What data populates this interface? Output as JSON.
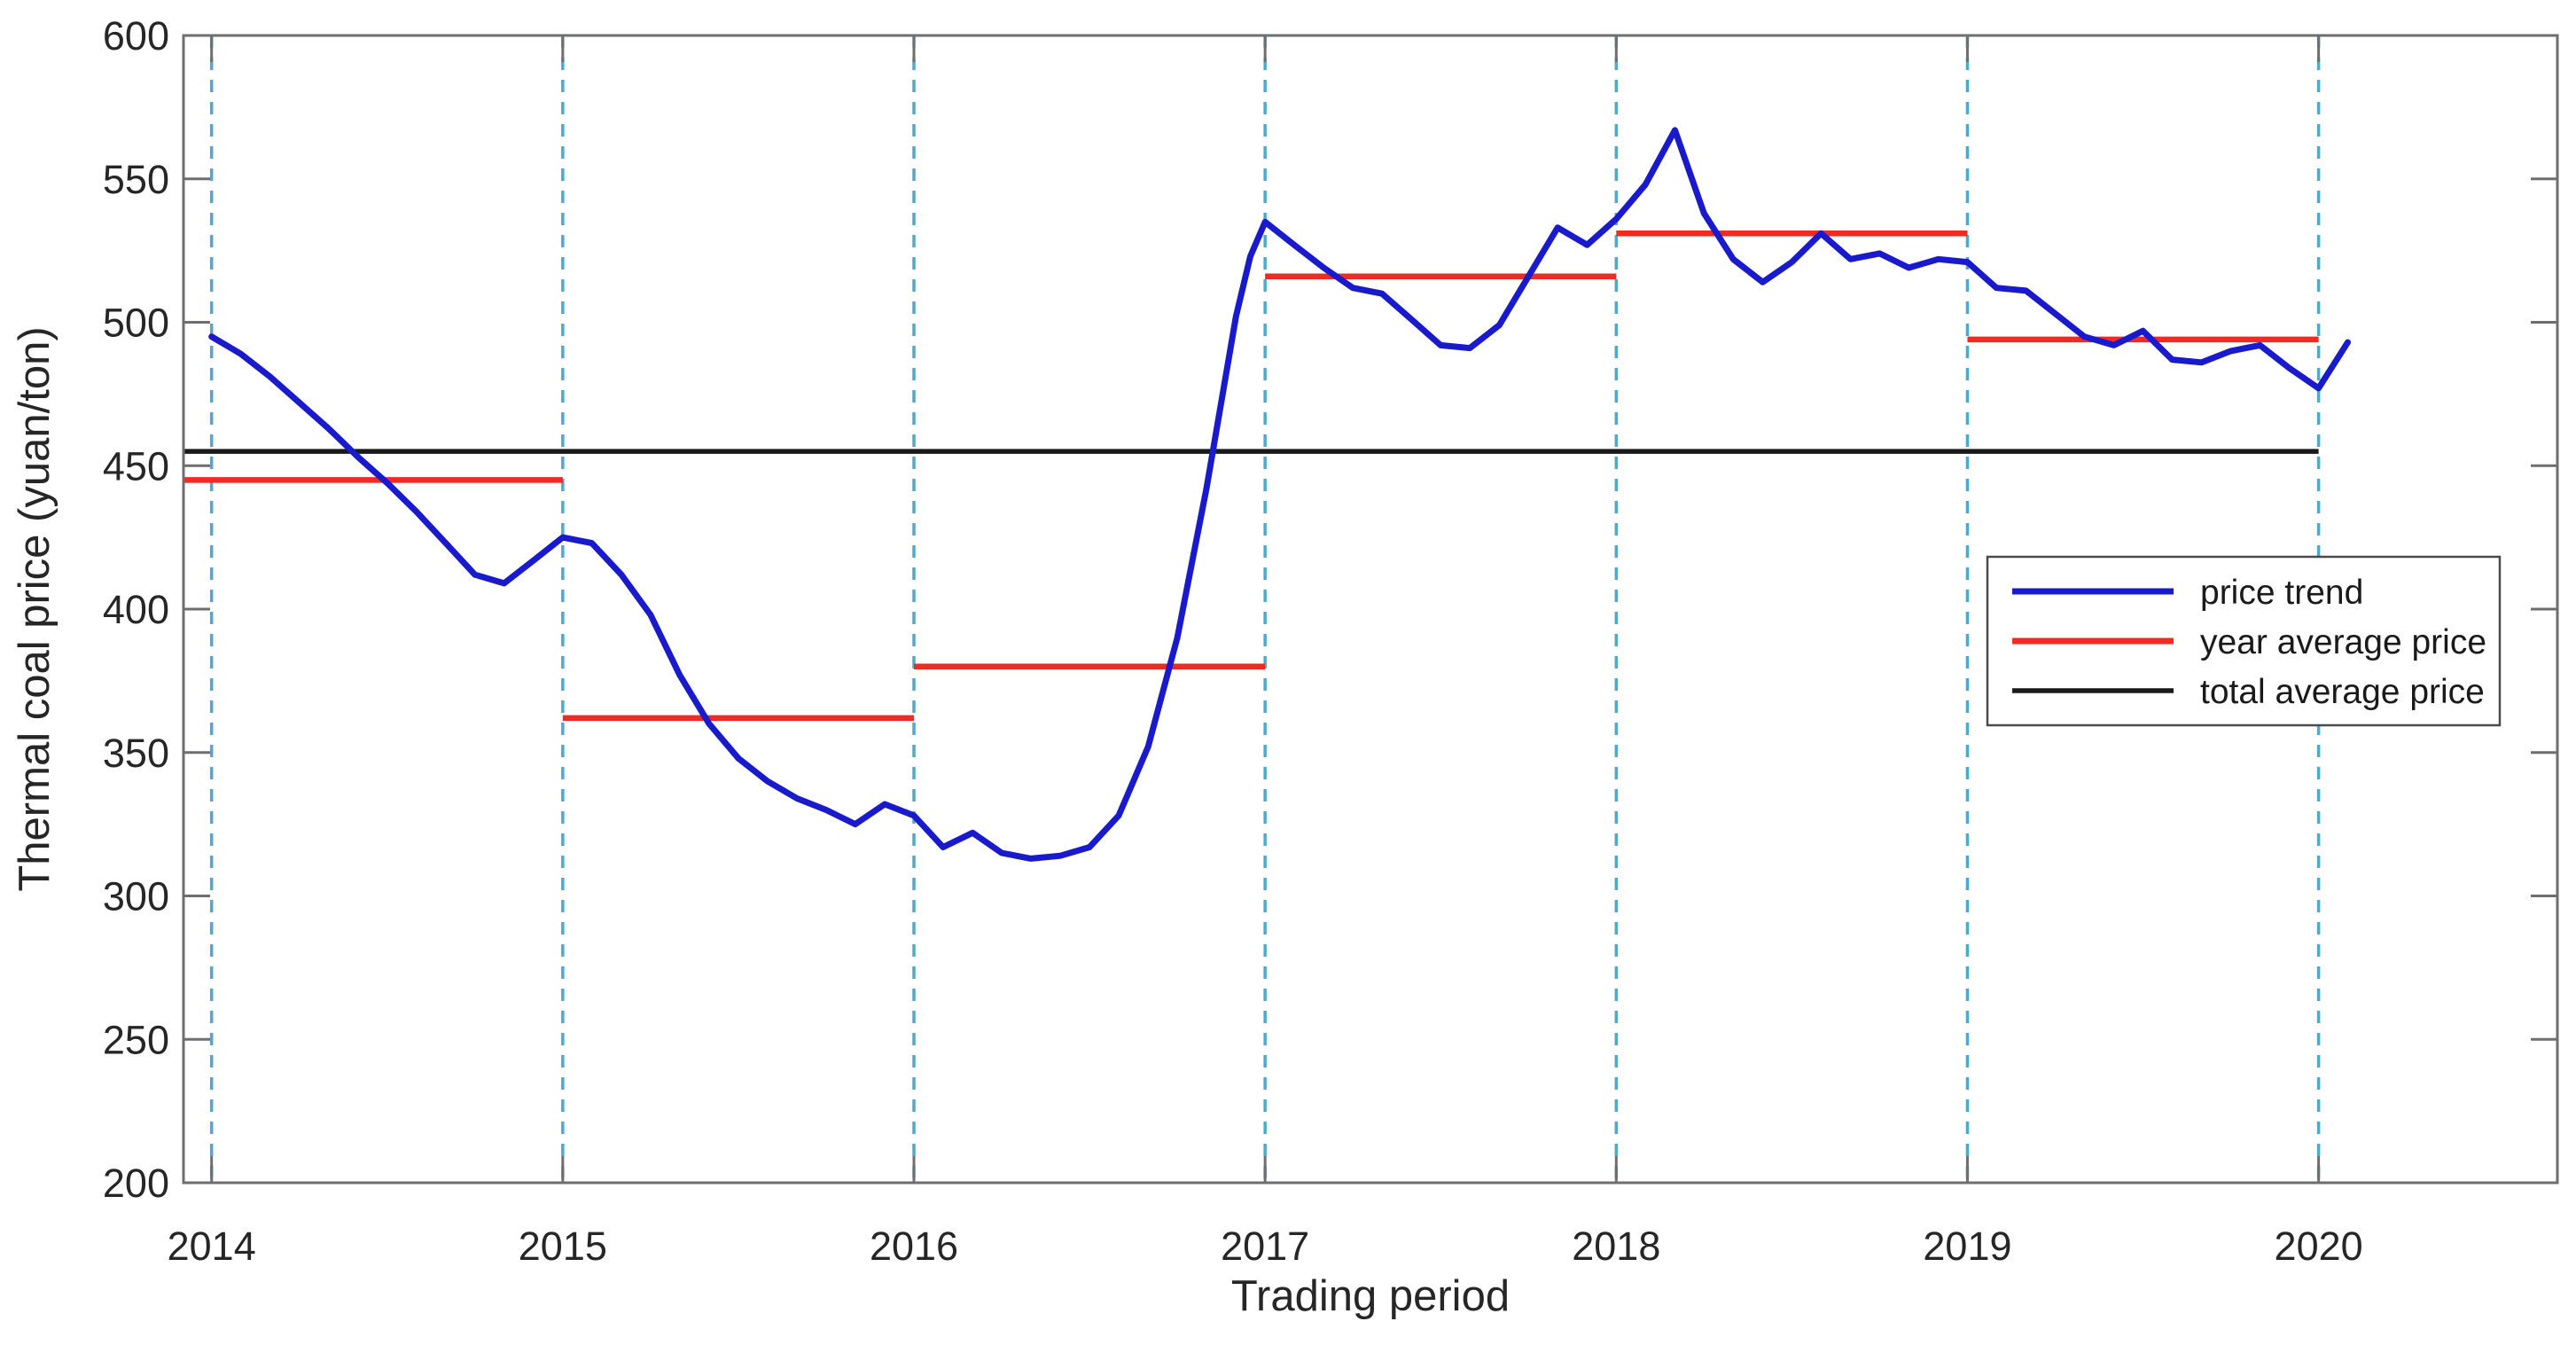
{
  "page": {
    "background": "#ffffff"
  },
  "chart_data": {
    "type": "line",
    "title": "",
    "xlabel": "Trading period",
    "ylabel": "Thermal coal price (yuan/ton)",
    "xlim": [
      2013.92,
      2020.68
    ],
    "ylim": [
      200,
      600
    ],
    "xticks": [
      2014,
      2015,
      2016,
      2017,
      2018,
      2019,
      2020
    ],
    "yticks": [
      200,
      250,
      300,
      350,
      400,
      450,
      500,
      550,
      600
    ],
    "grid": "vertical dashed lines at each year tick",
    "gridline_color": "#4fa9ce",
    "axis_color": "#6e6e6e",
    "legend_position": "middle-right",
    "series": [
      {
        "name": "price trend",
        "color": "#1a1acd",
        "points": [
          [
            2014.0,
            495
          ],
          [
            2014.083,
            489
          ],
          [
            2014.167,
            481
          ],
          [
            2014.25,
            472
          ],
          [
            2014.333,
            463
          ],
          [
            2014.417,
            453
          ],
          [
            2014.5,
            444
          ],
          [
            2014.583,
            434
          ],
          [
            2014.667,
            423
          ],
          [
            2014.75,
            412
          ],
          [
            2014.833,
            409
          ],
          [
            2014.917,
            417
          ],
          [
            2015.0,
            425
          ],
          [
            2015.083,
            423
          ],
          [
            2015.167,
            412
          ],
          [
            2015.25,
            398
          ],
          [
            2015.333,
            377
          ],
          [
            2015.417,
            360
          ],
          [
            2015.5,
            348
          ],
          [
            2015.583,
            340
          ],
          [
            2015.667,
            334
          ],
          [
            2015.75,
            330
          ],
          [
            2015.833,
            325
          ],
          [
            2015.917,
            332
          ],
          [
            2016.0,
            328
          ],
          [
            2016.083,
            317
          ],
          [
            2016.167,
            322
          ],
          [
            2016.25,
            315
          ],
          [
            2016.333,
            313
          ],
          [
            2016.417,
            314
          ],
          [
            2016.5,
            317
          ],
          [
            2016.583,
            328
          ],
          [
            2016.667,
            352
          ],
          [
            2016.75,
            390
          ],
          [
            2016.833,
            442
          ],
          [
            2016.917,
            502
          ],
          [
            2016.958,
            523
          ],
          [
            2017.0,
            535
          ],
          [
            2017.083,
            527
          ],
          [
            2017.167,
            519
          ],
          [
            2017.25,
            512
          ],
          [
            2017.333,
            510
          ],
          [
            2017.417,
            501
          ],
          [
            2017.5,
            492
          ],
          [
            2017.583,
            491
          ],
          [
            2017.667,
            499
          ],
          [
            2017.75,
            516
          ],
          [
            2017.833,
            533
          ],
          [
            2017.917,
            527
          ],
          [
            2018.0,
            536
          ],
          [
            2018.083,
            548
          ],
          [
            2018.167,
            567
          ],
          [
            2018.25,
            538
          ],
          [
            2018.333,
            522
          ],
          [
            2018.417,
            514
          ],
          [
            2018.5,
            521
          ],
          [
            2018.583,
            531
          ],
          [
            2018.667,
            522
          ],
          [
            2018.75,
            524
          ],
          [
            2018.833,
            519
          ],
          [
            2018.917,
            522
          ],
          [
            2019.0,
            521
          ],
          [
            2019.083,
            512
          ],
          [
            2019.167,
            511
          ],
          [
            2019.25,
            503
          ],
          [
            2019.333,
            495
          ],
          [
            2019.417,
            492
          ],
          [
            2019.5,
            497
          ],
          [
            2019.583,
            487
          ],
          [
            2019.667,
            486
          ],
          [
            2019.75,
            490
          ],
          [
            2019.833,
            492
          ],
          [
            2019.917,
            484
          ],
          [
            2020.0,
            477
          ],
          [
            2020.083,
            493
          ]
        ]
      },
      {
        "name": "year average price",
        "color": "#ef2b24",
        "segments": [
          {
            "x0": 2013.92,
            "x1": 2015.0,
            "y": 445
          },
          {
            "x0": 2015.0,
            "x1": 2016.0,
            "y": 362
          },
          {
            "x0": 2016.0,
            "x1": 2017.0,
            "y": 380
          },
          {
            "x0": 2017.0,
            "x1": 2018.0,
            "y": 516
          },
          {
            "x0": 2018.0,
            "x1": 2019.0,
            "y": 531
          },
          {
            "x0": 2019.0,
            "x1": 2020.0,
            "y": 494
          }
        ]
      },
      {
        "name": "total average price",
        "color": "#1a1a1a",
        "segments": [
          {
            "x0": 2013.92,
            "x1": 2020.0,
            "y": 455
          }
        ]
      }
    ]
  },
  "legend": {
    "entries": [
      {
        "label": "price trend",
        "color": "#1a1acd"
      },
      {
        "label": "year average price",
        "color": "#ef2b24"
      },
      {
        "label": "total average price",
        "color": "#1a1a1a"
      }
    ]
  }
}
